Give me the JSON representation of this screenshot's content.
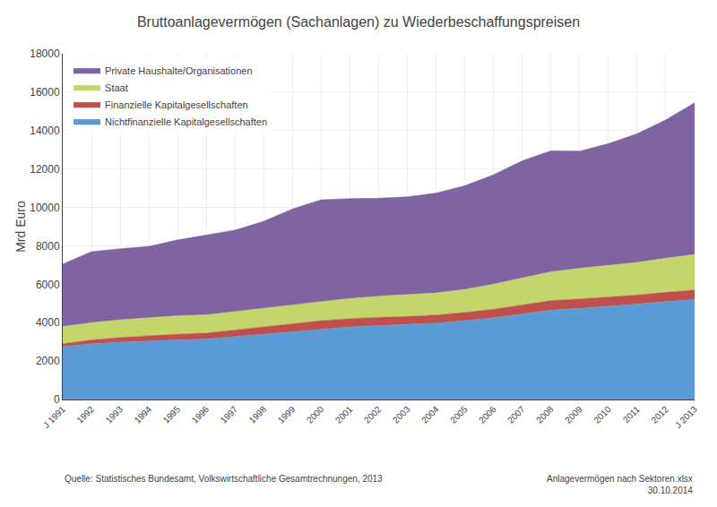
{
  "chart_data": {
    "type": "area",
    "title": "Bruttoanlagevermögen (Sachanlagen) zu Wiederbeschaffungspreisen",
    "ylabel": "Mrd Euro",
    "categories": [
      "J 1991",
      "1992",
      "1993",
      "1994",
      "1995",
      "1996",
      "1997",
      "1998",
      "1999",
      "2000",
      "2001",
      "2002",
      "2003",
      "2004",
      "2005",
      "2006",
      "2007",
      "2008",
      "2009",
      "2010",
      "2011",
      "2012",
      "J 2013"
    ],
    "series": [
      {
        "name": "Nichtfinanzielle Kapitalgesellschaften",
        "color": "#5b9bd5",
        "values": [
          2750,
          2900,
          2980,
          3050,
          3100,
          3150,
          3280,
          3400,
          3550,
          3680,
          3780,
          3850,
          3900,
          3980,
          4100,
          4250,
          4450,
          4650,
          4750,
          4850,
          4970,
          5100,
          5200
        ]
      },
      {
        "name": "Finanzielle Kapitalgesellschaften",
        "color": "#c0504d",
        "values": [
          150,
          200,
          250,
          280,
          300,
          310,
          330,
          360,
          390,
          420,
          430,
          430,
          420,
          420,
          430,
          450,
          480,
          500,
          480,
          470,
          470,
          480,
          500
        ]
      },
      {
        "name": "Staat",
        "color": "#c4d56c",
        "values": [
          900,
          900,
          920,
          940,
          960,
          950,
          960,
          970,
          980,
          1000,
          1050,
          1100,
          1130,
          1150,
          1200,
          1300,
          1400,
          1500,
          1600,
          1650,
          1700,
          1780,
          1850
        ]
      },
      {
        "name": "Private Haushalte/Organisationen",
        "color": "#8064a2",
        "values": [
          3250,
          3700,
          3700,
          3700,
          3950,
          4150,
          4250,
          4550,
          5000,
          5300,
          5200,
          5100,
          5100,
          5200,
          5400,
          5700,
          6100,
          6300,
          6100,
          6350,
          6700,
          7200,
          7900
        ]
      }
    ],
    "stacked": true,
    "ylim": [
      0,
      18000
    ],
    "yticks": [
      0,
      2000,
      4000,
      6000,
      8000,
      10000,
      12000,
      14000,
      16000,
      18000
    ],
    "grid": true,
    "legend": "upper left",
    "annotations": [
      "Quelle: Statistisches Bundesamt, Volkswirtschaftliche Gesamtrechnungen, 2013",
      "Anlagevermögen nach Sektoren.xlsx\n30.10.2014"
    ]
  }
}
